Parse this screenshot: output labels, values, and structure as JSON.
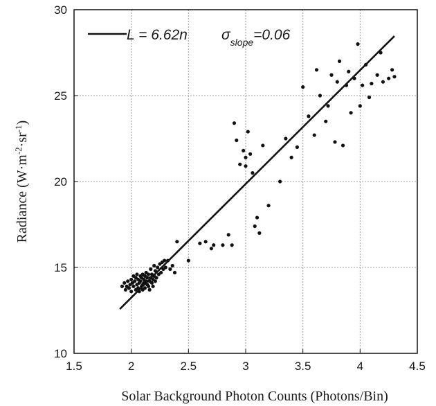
{
  "chart_data": {
    "type": "scatter",
    "xlabel": "Solar Background Photon Counts (Photons/Bin)",
    "ylabel_parts": {
      "main": "Radiance (W·m",
      "sup1": "-2",
      "mid": "·sr",
      "sup2": "-1",
      "end": ")"
    },
    "xlim": [
      1.5,
      4.5
    ],
    "ylim": [
      10,
      30
    ],
    "x_ticks": [
      1.5,
      2,
      2.5,
      3,
      3.5,
      4,
      4.5
    ],
    "x_tick_labels": [
      "1.5",
      "2",
      "2.5",
      "3",
      "3.5",
      "4",
      "4.5"
    ],
    "y_ticks": [
      10,
      15,
      20,
      25,
      30
    ],
    "y_tick_labels": [
      "10",
      "15",
      "20",
      "25",
      "30"
    ],
    "grid": true,
    "legend_position": "top-left",
    "legend": {
      "L": "L",
      "eq": " = 6.62",
      "n": "n",
      "sigma": "σ",
      "sub": "slope",
      "val": "=0.06"
    },
    "fit_line": {
      "slope": 6.62,
      "x_range": [
        1.9,
        4.3
      ]
    },
    "series": [
      {
        "points": [
          [
            1.92,
            13.9
          ],
          [
            1.94,
            14.1
          ],
          [
            1.95,
            13.7
          ],
          [
            1.96,
            13.9
          ],
          [
            1.97,
            14.2
          ],
          [
            1.98,
            13.8
          ],
          [
            1.99,
            14.0
          ],
          [
            2.0,
            14.3
          ],
          [
            2.0,
            13.6
          ],
          [
            2.01,
            14.1
          ],
          [
            2.02,
            14.5
          ],
          [
            2.02,
            13.9
          ],
          [
            2.03,
            14.2
          ],
          [
            2.04,
            13.7
          ],
          [
            2.04,
            14.4
          ],
          [
            2.05,
            14.0
          ],
          [
            2.05,
            14.6
          ],
          [
            2.06,
            13.8
          ],
          [
            2.06,
            14.3
          ],
          [
            2.07,
            14.1
          ],
          [
            2.07,
            13.6
          ],
          [
            2.08,
            14.5
          ],
          [
            2.08,
            14.2
          ],
          [
            2.09,
            13.9
          ],
          [
            2.09,
            14.4
          ],
          [
            2.1,
            14.0
          ],
          [
            2.1,
            14.6
          ],
          [
            2.1,
            13.7
          ],
          [
            2.11,
            14.3
          ],
          [
            2.11,
            14.1
          ],
          [
            2.12,
            14.5
          ],
          [
            2.12,
            13.8
          ],
          [
            2.13,
            14.2
          ],
          [
            2.13,
            14.7
          ],
          [
            2.14,
            14.0
          ],
          [
            2.14,
            14.4
          ],
          [
            2.15,
            13.9
          ],
          [
            2.15,
            14.6
          ],
          [
            2.16,
            14.2
          ],
          [
            2.16,
            13.7
          ],
          [
            2.17,
            14.4
          ],
          [
            2.17,
            14.9
          ],
          [
            2.18,
            14.1
          ],
          [
            2.18,
            14.6
          ],
          [
            2.19,
            14.3
          ],
          [
            2.19,
            13.9
          ],
          [
            2.2,
            14.5
          ],
          [
            2.2,
            15.1
          ],
          [
            2.21,
            14.2
          ],
          [
            2.21,
            14.8
          ],
          [
            2.22,
            14.4
          ],
          [
            2.23,
            15.0
          ],
          [
            2.24,
            14.6
          ],
          [
            2.25,
            15.2
          ],
          [
            2.26,
            14.7
          ],
          [
            2.27,
            15.3
          ],
          [
            2.28,
            14.9
          ],
          [
            2.29,
            15.4
          ],
          [
            2.3,
            15.0
          ],
          [
            2.32,
            15.4
          ],
          [
            2.34,
            14.9
          ],
          [
            2.36,
            15.1
          ],
          [
            2.38,
            14.7
          ],
          [
            2.4,
            16.5
          ],
          [
            2.5,
            15.4
          ],
          [
            2.6,
            16.4
          ],
          [
            2.65,
            16.5
          ],
          [
            2.7,
            16.1
          ],
          [
            2.72,
            16.3
          ],
          [
            2.8,
            16.3
          ],
          [
            2.85,
            16.9
          ],
          [
            2.88,
            16.3
          ],
          [
            2.9,
            23.4
          ],
          [
            2.92,
            22.4
          ],
          [
            2.95,
            21.0
          ],
          [
            2.98,
            21.8
          ],
          [
            3.0,
            21.4
          ],
          [
            3.0,
            20.9
          ],
          [
            3.02,
            22.9
          ],
          [
            3.04,
            21.6
          ],
          [
            3.06,
            20.5
          ],
          [
            3.08,
            17.4
          ],
          [
            3.1,
            17.9
          ],
          [
            3.12,
            17.0
          ],
          [
            3.15,
            22.1
          ],
          [
            3.2,
            18.6
          ],
          [
            3.3,
            20.0
          ],
          [
            3.35,
            22.5
          ],
          [
            3.4,
            21.4
          ],
          [
            3.45,
            22.0
          ],
          [
            3.5,
            25.5
          ],
          [
            3.55,
            23.8
          ],
          [
            3.6,
            22.7
          ],
          [
            3.62,
            26.5
          ],
          [
            3.65,
            25.0
          ],
          [
            3.7,
            23.5
          ],
          [
            3.72,
            24.4
          ],
          [
            3.75,
            26.2
          ],
          [
            3.78,
            22.3
          ],
          [
            3.8,
            25.8
          ],
          [
            3.82,
            27.0
          ],
          [
            3.85,
            22.1
          ],
          [
            3.88,
            25.6
          ],
          [
            3.9,
            26.4
          ],
          [
            3.92,
            24.0
          ],
          [
            3.95,
            26.0
          ],
          [
            3.98,
            28.0
          ],
          [
            4.0,
            24.4
          ],
          [
            4.02,
            25.6
          ],
          [
            4.05,
            26.8
          ],
          [
            4.08,
            24.9
          ],
          [
            4.1,
            25.7
          ],
          [
            4.15,
            26.2
          ],
          [
            4.18,
            27.5
          ],
          [
            4.2,
            25.8
          ],
          [
            4.25,
            26.0
          ],
          [
            4.28,
            26.5
          ],
          [
            4.3,
            26.1
          ]
        ]
      }
    ]
  }
}
